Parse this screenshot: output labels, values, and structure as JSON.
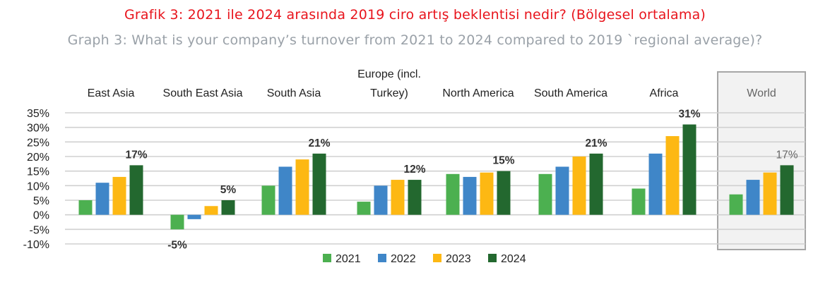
{
  "header": {
    "title_tr": "Grafik 3: 2021 ile 2024 arasında 2019 ciro artış beklentisi nedir? (Bölgesel ortalama)",
    "title_en": "Graph 3: What is your company’s turnover from 2021 to 2024 compared to 2019 `regional average)?"
  },
  "colors": {
    "title_tr": "#e8141c",
    "title_en": "#9aa1a8",
    "world_panel_bg": "#f2f2f2",
    "world_panel_border": "#a6a6a6"
  },
  "chart_data": {
    "type": "bar",
    "title": "",
    "xlabel": "",
    "ylabel": "",
    "ylim": [
      -0.1,
      0.35
    ],
    "yticks": [
      0.35,
      0.3,
      0.25,
      0.2,
      0.15,
      0.1,
      0.05,
      0.0,
      -0.05,
      -0.1
    ],
    "ytick_labels": [
      "35%",
      "30%",
      "25%",
      "20%",
      "15%",
      "10%",
      "5%",
      "0%",
      "-5%",
      "-10%"
    ],
    "grid": true,
    "legend_position": "bottom-center",
    "categories": [
      {
        "label_lines": [
          "East Asia"
        ]
      },
      {
        "label_lines": [
          "South East Asia"
        ]
      },
      {
        "label_lines": [
          "South Asia"
        ]
      },
      {
        "label_lines": [
          "Europe (incl.",
          "Turkey)"
        ]
      },
      {
        "label_lines": [
          "North America"
        ]
      },
      {
        "label_lines": [
          "South America"
        ]
      },
      {
        "label_lines": [
          "Africa"
        ]
      },
      {
        "label_lines": [
          "World"
        ],
        "highlighted": true
      }
    ],
    "series": [
      {
        "name": "2021",
        "color": "#4cb050",
        "values": [
          0.05,
          -0.05,
          0.1,
          0.045,
          0.14,
          0.14,
          0.09,
          0.07
        ]
      },
      {
        "name": "2022",
        "color": "#3f86c8",
        "values": [
          0.11,
          -0.015,
          0.165,
          0.1,
          0.13,
          0.165,
          0.21,
          0.12
        ]
      },
      {
        "name": "2023",
        "color": "#fdb813",
        "values": [
          0.13,
          0.03,
          0.19,
          0.12,
          0.145,
          0.2,
          0.27,
          0.145
        ]
      },
      {
        "name": "2024",
        "color": "#23682f",
        "values": [
          0.17,
          0.05,
          0.21,
          0.12,
          0.15,
          0.21,
          0.31,
          0.17
        ]
      }
    ],
    "data_labels": [
      {
        "category": 0,
        "series": 3,
        "text": "17%"
      },
      {
        "category": 1,
        "series": 0,
        "text": "-5%"
      },
      {
        "category": 1,
        "series": 3,
        "text": "5%"
      },
      {
        "category": 2,
        "series": 3,
        "text": "21%"
      },
      {
        "category": 3,
        "series": 3,
        "text": "12%"
      },
      {
        "category": 4,
        "series": 3,
        "text": "15%"
      },
      {
        "category": 5,
        "series": 3,
        "text": "21%"
      },
      {
        "category": 6,
        "series": 3,
        "text": "31%"
      },
      {
        "category": 7,
        "series": 3,
        "text": "17%"
      }
    ]
  }
}
